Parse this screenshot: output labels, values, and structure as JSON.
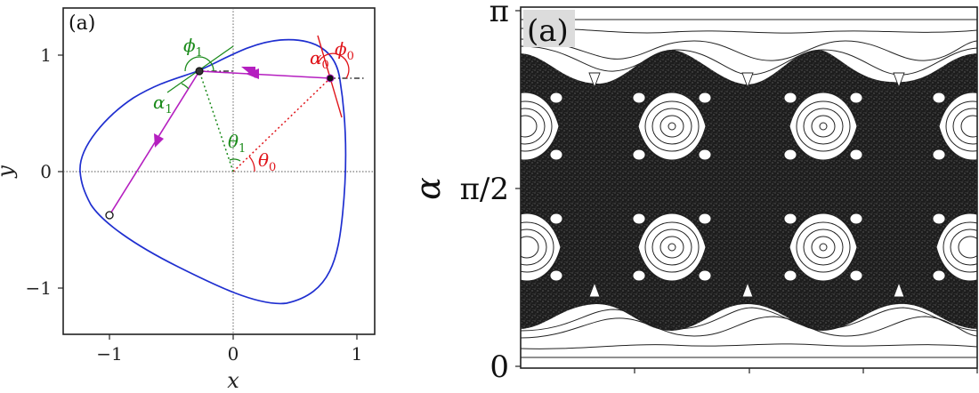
{
  "left_panel": {
    "panel_tag": "(a)",
    "xlabel": "x",
    "ylabel": "y",
    "x_ticks": [
      "−1",
      "0",
      "1"
    ],
    "y_ticks": [
      "1",
      "0",
      "−1"
    ],
    "angles": {
      "phi0": {
        "sym": "ϕ",
        "sub": "0",
        "color": "#e0141a"
      },
      "alpha0": {
        "sym": "α",
        "sub": "0",
        "color": "#e0141a"
      },
      "theta0": {
        "sym": "θ",
        "sub": "0",
        "color": "#e0141a"
      },
      "phi1": {
        "sym": "ϕ",
        "sub": "1",
        "color": "#1a8a1a"
      },
      "alpha1": {
        "sym": "α",
        "sub": "1",
        "color": "#1a8a1a"
      },
      "theta1": {
        "sym": "θ",
        "sub": "1",
        "color": "#1a8a1a"
      }
    },
    "colors": {
      "boundary": "#1f2fd0",
      "trajectory": "#b51fc0"
    }
  },
  "right_panel": {
    "panel_tag": "(a)",
    "ylabel": "α",
    "y_ticks": [
      "π",
      "π/2",
      "0"
    ]
  }
}
